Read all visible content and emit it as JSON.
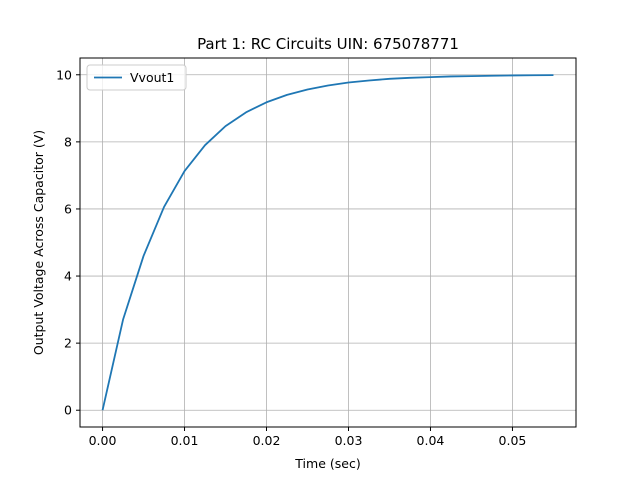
{
  "chart_data": {
    "type": "line",
    "title": "Part 1: RC Circuits UIN: 675078771",
    "xlabel": "Time (sec)",
    "ylabel": "Output Voltage Across Capacitor (V)",
    "xlim": [
      -0.00275,
      0.05775
    ],
    "ylim": [
      -0.5,
      10.5
    ],
    "xticks": [
      0.0,
      0.01,
      0.02,
      0.03,
      0.04,
      0.05
    ],
    "xtick_labels": [
      "0.00",
      "0.01",
      "0.02",
      "0.03",
      "0.04",
      "0.05"
    ],
    "yticks": [
      0,
      2,
      4,
      6,
      8,
      10
    ],
    "ytick_labels": [
      "0",
      "2",
      "4",
      "6",
      "8",
      "10"
    ],
    "grid": true,
    "legend_position": "top-left",
    "series": [
      {
        "name": "Vvout1",
        "color": "#1f77b4",
        "x": [
          0.0,
          0.0025,
          0.005,
          0.0075,
          0.01,
          0.0125,
          0.015,
          0.0175,
          0.02,
          0.0225,
          0.025,
          0.0275,
          0.03,
          0.0325,
          0.035,
          0.0375,
          0.04,
          0.0425,
          0.045,
          0.0475,
          0.05,
          0.0525,
          0.055
        ],
        "y": [
          0.0,
          2.7,
          4.6,
          6.06,
          7.13,
          7.9,
          8.47,
          8.88,
          9.18,
          9.4,
          9.56,
          9.68,
          9.77,
          9.83,
          9.88,
          9.91,
          9.93,
          9.95,
          9.96,
          9.97,
          9.98,
          9.985,
          9.99
        ]
      }
    ]
  }
}
